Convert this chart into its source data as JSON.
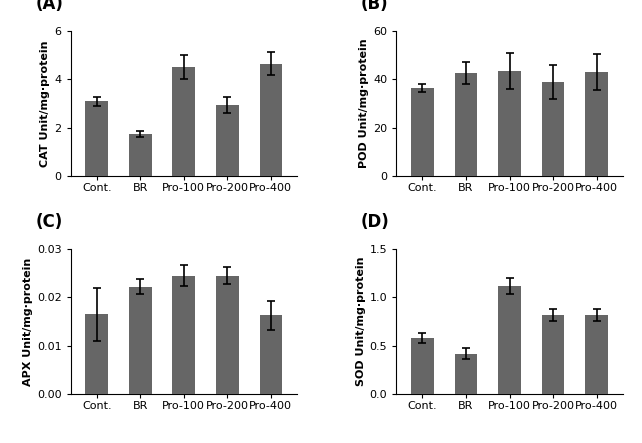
{
  "categories": [
    "Cont.",
    "BR",
    "Pro-100",
    "Pro-200",
    "Pro-400"
  ],
  "A": {
    "label": "(A)",
    "ylabel": "CAT Unit/mg·protein",
    "values": [
      3.1,
      1.75,
      4.5,
      2.95,
      4.65
    ],
    "errors": [
      0.18,
      0.12,
      0.5,
      0.32,
      0.48
    ],
    "ylim": [
      0,
      6
    ],
    "yticks": [
      0,
      2,
      4,
      6
    ]
  },
  "B": {
    "label": "(B)",
    "ylabel": "POD Unit/mg·protein",
    "values": [
      36.5,
      42.5,
      43.5,
      39.0,
      43.0
    ],
    "errors": [
      1.5,
      4.5,
      7.5,
      7.0,
      7.5
    ],
    "ylim": [
      0,
      60
    ],
    "yticks": [
      0,
      20,
      40,
      60
    ]
  },
  "C": {
    "label": "(C)",
    "ylabel": "APX Unit/mg·protein",
    "values": [
      0.0165,
      0.0222,
      0.0245,
      0.0245,
      0.0163
    ],
    "errors": [
      0.0055,
      0.0015,
      0.0022,
      0.0018,
      0.003
    ],
    "ylim": [
      0,
      0.03
    ],
    "yticks": [
      0,
      0.01,
      0.02,
      0.03
    ]
  },
  "D": {
    "label": "(D)",
    "ylabel": "SOD Unit/mg·protein",
    "values": [
      0.58,
      0.42,
      1.12,
      0.82,
      0.82
    ],
    "errors": [
      0.05,
      0.06,
      0.08,
      0.06,
      0.06
    ],
    "ylim": [
      0,
      1.5
    ],
    "yticks": [
      0,
      0.5,
      1.0,
      1.5
    ]
  },
  "bar_color": "#666666",
  "bar_width": 0.52,
  "background_color": "#ffffff",
  "label_fontsize": 12,
  "tick_fontsize": 8,
  "ylabel_fontsize": 8
}
